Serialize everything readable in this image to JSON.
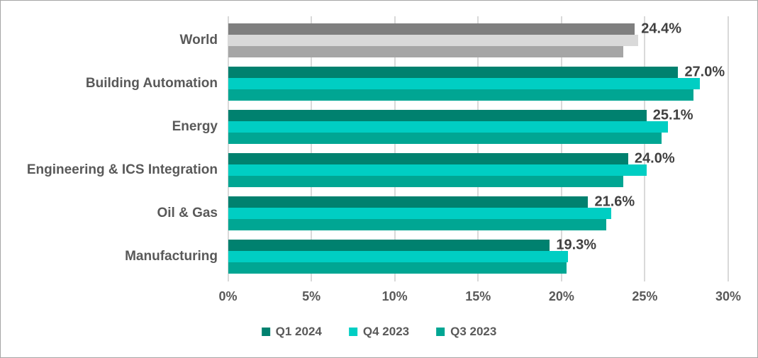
{
  "chart_data": {
    "type": "bar",
    "orientation": "horizontal",
    "title": "",
    "categories": [
      "World",
      "Building Automation",
      "Energy",
      "Engineering & ICS Integration",
      "Oil & Gas",
      "Manufacturing"
    ],
    "series": [
      {
        "name": "Q1 2024",
        "color": "#00816F",
        "world_color": "#7F7F7F",
        "values": [
          24.4,
          27.0,
          25.1,
          24.0,
          21.6,
          19.3
        ]
      },
      {
        "name": "Q4 2023",
        "color": "#00CEC3",
        "world_color": "#D9D9D9",
        "values": [
          24.6,
          28.3,
          26.4,
          25.1,
          23.0,
          20.4
        ]
      },
      {
        "name": "Q3 2023",
        "color": "#00A693",
        "world_color": "#A6A6A6",
        "values": [
          23.7,
          27.9,
          26.0,
          23.7,
          22.7,
          20.3
        ]
      }
    ],
    "data_labels": [
      "24.4%",
      "27.0%",
      "25.1%",
      "24.0%",
      "21.6%",
      "19.3%"
    ],
    "data_label_series": "Q1 2024",
    "x_ticks": [
      "0%",
      "5%",
      "10%",
      "15%",
      "20%",
      "25%",
      "30%"
    ],
    "x_tick_values": [
      0,
      5,
      10,
      15,
      20,
      25,
      30
    ],
    "xlim": [
      0,
      30
    ],
    "grid": true,
    "legend_position": "bottom"
  },
  "style": {
    "gridline_color": "#D9D9D9",
    "label_color": "#595959",
    "data_label_color": "#404040",
    "border_color": "#A6A6A6",
    "background": "#FFFFFF"
  }
}
